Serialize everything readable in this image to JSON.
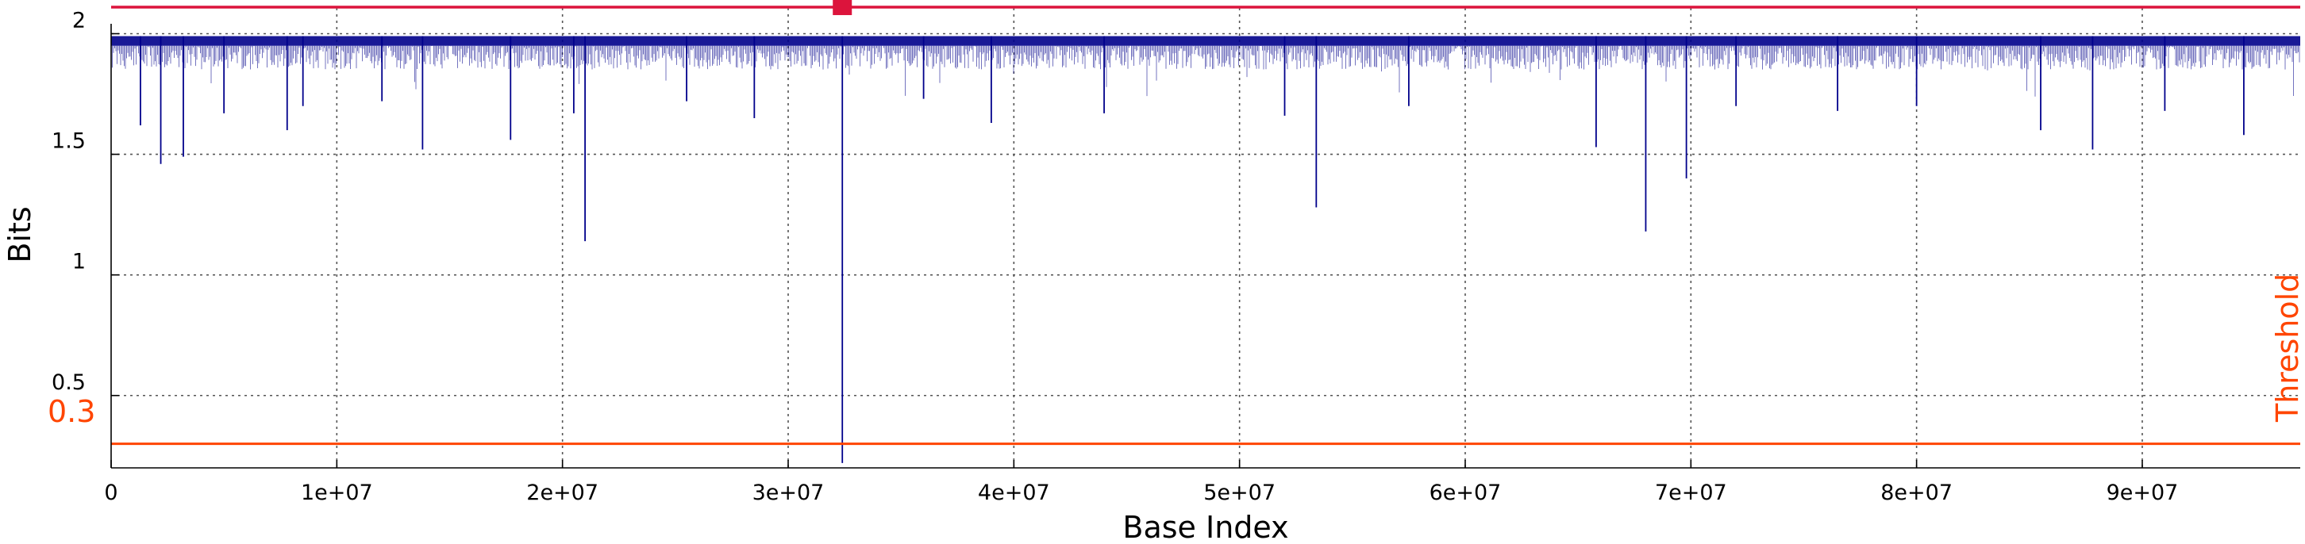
{
  "chart_data": {
    "type": "line",
    "xlabel": "Base Index",
    "ylabel": "Bits",
    "xlim": [
      0,
      97000000
    ],
    "ylim": [
      0.2,
      2.12
    ],
    "x_ticks": [
      0,
      10000000,
      20000000,
      30000000,
      40000000,
      50000000,
      60000000,
      70000000,
      80000000,
      90000000
    ],
    "x_tick_labels": [
      "0",
      "1e+07",
      "2e+07",
      "3e+07",
      "4e+07",
      "5e+07",
      "6e+07",
      "7e+07",
      "8e+07",
      "9e+07"
    ],
    "y_ticks": [
      0.5,
      1,
      1.5,
      2
    ],
    "y_tick_labels": [
      "0.5",
      "1",
      "1.5",
      "2"
    ],
    "grid": true,
    "threshold": {
      "value": 0.3,
      "label": "Threshold",
      "value_label": "0.3",
      "color": "#ff4500"
    },
    "top_line": {
      "value": 2.11,
      "color": "#dc143c"
    },
    "marker": {
      "x": 32400000,
      "y": 2.11,
      "color": "#dc143c"
    },
    "series": [
      {
        "color": "#00008b",
        "baseline": 1.99,
        "lower_band": 1.95,
        "dips": [
          [
            1300000,
            1.62
          ],
          [
            2200000,
            1.46
          ],
          [
            3200000,
            1.49
          ],
          [
            5000000,
            1.67
          ],
          [
            7800000,
            1.6
          ],
          [
            8500000,
            1.7
          ],
          [
            12000000,
            1.72
          ],
          [
            13800000,
            1.52
          ],
          [
            17700000,
            1.56
          ],
          [
            20500000,
            1.67
          ],
          [
            21000000,
            1.14
          ],
          [
            25500000,
            1.72
          ],
          [
            28500000,
            1.65
          ],
          [
            32400000,
            0.22
          ],
          [
            36000000,
            1.73
          ],
          [
            39000000,
            1.63
          ],
          [
            44000000,
            1.67
          ],
          [
            52000000,
            1.66
          ],
          [
            53400000,
            1.28
          ],
          [
            57500000,
            1.7
          ],
          [
            65800000,
            1.53
          ],
          [
            68000000,
            1.18
          ],
          [
            69800000,
            1.4
          ],
          [
            72000000,
            1.7
          ],
          [
            76500000,
            1.68
          ],
          [
            80000000,
            1.7
          ],
          [
            85500000,
            1.6
          ],
          [
            87800000,
            1.52
          ],
          [
            91000000,
            1.68
          ],
          [
            94500000,
            1.58
          ]
        ]
      }
    ]
  }
}
